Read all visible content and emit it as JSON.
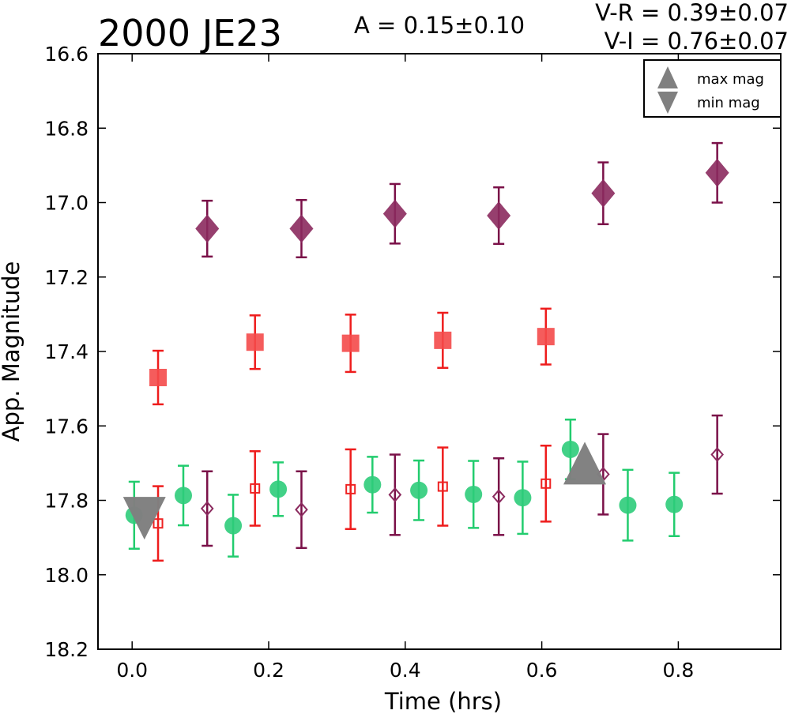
{
  "chart_data": {
    "type": "scatter",
    "title": "2000 JE23",
    "amplitude_text": "A  = 0.15±0.10",
    "color_index_text": [
      "V-R = 0.39±0.07",
      "V-I  = 0.76±0.07"
    ],
    "xlabel": "Time (hrs)",
    "ylabel": "App. Magnitude",
    "xlim": [
      -0.05,
      0.95
    ],
    "ylim": [
      18.2,
      16.6
    ],
    "y_inverted": true,
    "xticks": [
      0.0,
      0.2,
      0.4,
      0.6,
      0.8
    ],
    "xtick_labels": [
      "0.0",
      "0.2",
      "0.4",
      "0.6",
      "0.8"
    ],
    "yticks": [
      16.6,
      16.8,
      17.0,
      17.2,
      17.4,
      17.6,
      17.8,
      18.0,
      18.2
    ],
    "ytick_labels": [
      "16.6",
      "16.8",
      "17.0",
      "17.2",
      "17.4",
      "17.6",
      "17.8",
      "18.0",
      "18.2"
    ],
    "grid": false,
    "legend": {
      "placement": "top-right",
      "entries": [
        {
          "label": "max mag",
          "marker": "triangle-up",
          "color": "#808080"
        },
        {
          "label": "min mag",
          "marker": "triangle-down",
          "color": "#808080"
        }
      ]
    },
    "series": [
      {
        "marker": "diamond",
        "filled": true,
        "color": "#8b2a5e",
        "errcolor": "#7a1048",
        "points": [
          {
            "x": 0.11,
            "y": 17.07,
            "err": 0.075
          },
          {
            "x": 0.248,
            "y": 17.07,
            "err": 0.077
          },
          {
            "x": 0.385,
            "y": 17.03,
            "err": 0.08
          },
          {
            "x": 0.537,
            "y": 17.035,
            "err": 0.076
          },
          {
            "x": 0.69,
            "y": 16.975,
            "err": 0.083
          },
          {
            "x": 0.857,
            "y": 16.92,
            "err": 0.08
          }
        ]
      },
      {
        "marker": "square",
        "filled": true,
        "color": "#f44a4a",
        "errcolor": "#ee1c1c",
        "points": [
          {
            "x": 0.038,
            "y": 17.47,
            "err": 0.072
          },
          {
            "x": 0.18,
            "y": 17.375,
            "err": 0.072
          },
          {
            "x": 0.32,
            "y": 17.378,
            "err": 0.077
          },
          {
            "x": 0.455,
            "y": 17.37,
            "err": 0.074
          },
          {
            "x": 0.606,
            "y": 17.36,
            "err": 0.075
          }
        ]
      },
      {
        "marker": "circle",
        "filled": true,
        "color": "#2ecc7a",
        "errcolor": "#22cc6e",
        "points": [
          {
            "x": 0.003,
            "y": 17.84,
            "err": 0.09
          },
          {
            "x": 0.075,
            "y": 17.787,
            "err": 0.08
          },
          {
            "x": 0.148,
            "y": 17.868,
            "err": 0.083
          },
          {
            "x": 0.214,
            "y": 17.77,
            "err": 0.072
          },
          {
            "x": 0.352,
            "y": 17.758,
            "err": 0.075
          },
          {
            "x": 0.42,
            "y": 17.773,
            "err": 0.08
          },
          {
            "x": 0.5,
            "y": 17.784,
            "err": 0.09
          },
          {
            "x": 0.572,
            "y": 17.793,
            "err": 0.097
          },
          {
            "x": 0.642,
            "y": 17.663,
            "err": 0.08
          },
          {
            "x": 0.726,
            "y": 17.813,
            "err": 0.095
          },
          {
            "x": 0.794,
            "y": 17.811,
            "err": 0.085
          }
        ]
      },
      {
        "marker": "square",
        "filled": false,
        "color": "#ee2222",
        "errcolor": "#ee1c1c",
        "points": [
          {
            "x": 0.038,
            "y": 17.862,
            "err": 0.1
          },
          {
            "x": 0.18,
            "y": 17.768,
            "err": 0.1
          },
          {
            "x": 0.32,
            "y": 17.77,
            "err": 0.107
          },
          {
            "x": 0.455,
            "y": 17.763,
            "err": 0.105
          },
          {
            "x": 0.606,
            "y": 17.755,
            "err": 0.102
          }
        ]
      },
      {
        "marker": "diamond",
        "filled": false,
        "color": "#8b2a5e",
        "errcolor": "#7a1048",
        "points": [
          {
            "x": 0.11,
            "y": 17.822,
            "err": 0.1
          },
          {
            "x": 0.248,
            "y": 17.825,
            "err": 0.103
          },
          {
            "x": 0.385,
            "y": 17.785,
            "err": 0.108
          },
          {
            "x": 0.537,
            "y": 17.79,
            "err": 0.103
          },
          {
            "x": 0.69,
            "y": 17.73,
            "err": 0.108
          },
          {
            "x": 0.857,
            "y": 17.677,
            "err": 0.105
          }
        ]
      }
    ],
    "extrema": [
      {
        "type": "min",
        "x": 0.018,
        "y": 17.848,
        "color": "#808080"
      },
      {
        "type": "max",
        "x": 0.663,
        "y": 17.7,
        "color": "#808080"
      }
    ]
  }
}
